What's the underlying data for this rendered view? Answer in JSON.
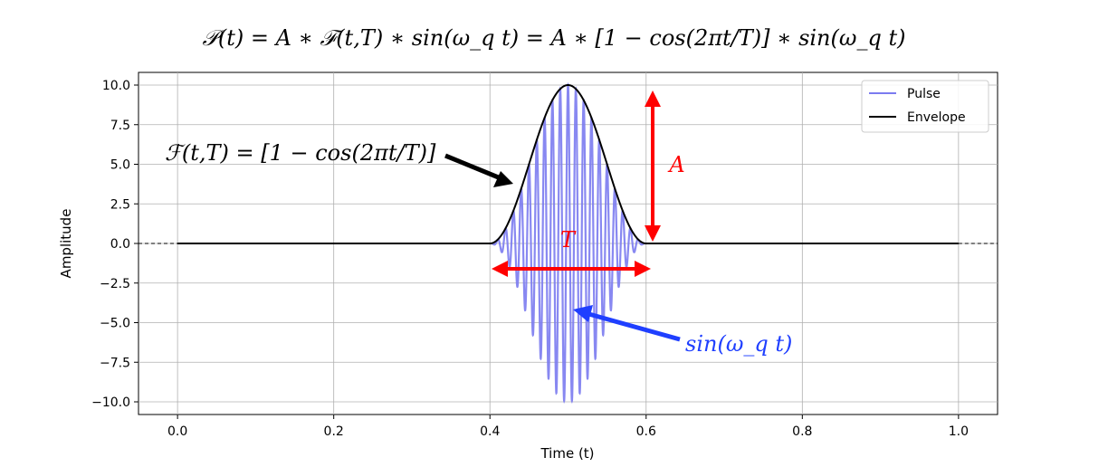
{
  "chart_data": {
    "type": "line",
    "title": "𝒫(t) = A ∗ ℱ(t,T) ∗ sin(ω_q t) = A ∗ [1 − cos(2πt/T)] ∗ sin(ω_q t)",
    "xlabel": "Time (t)",
    "ylabel": "Amplitude",
    "xlim": [
      -0.05,
      1.05
    ],
    "ylim": [
      -10.8,
      10.8
    ],
    "xticks": [
      0.0,
      0.2,
      0.4,
      0.6,
      0.8,
      1.0
    ],
    "xtick_labels": [
      "0.0",
      "0.2",
      "0.4",
      "0.6",
      "0.8",
      "1.0"
    ],
    "yticks": [
      10.0,
      7.5,
      5.0,
      2.5,
      0.0,
      -2.5,
      -5.0,
      -7.5,
      -10.0
    ],
    "ytick_labels": [
      "10.0",
      "7.5",
      "5.0",
      "2.5",
      "0.0",
      "−2.5",
      "−5.0",
      "−7.5",
      "−10.0"
    ],
    "grid": true,
    "legend_position": "top-right",
    "series": [
      {
        "name": "Pulse",
        "color": "#7b7bf0",
        "description": "10*[1-cos(2π(t-0.4)/0.2)]/2 * sin(ω_q t) for 0.4≤t≤0.6",
        "amplitude": 10,
        "pulse_start": 0.4,
        "pulse_end": 0.6,
        "oscillations": 20
      },
      {
        "name": "Envelope",
        "color": "#000000",
        "amplitude": 10,
        "pulse_start": 0.4,
        "pulse_end": 0.6
      }
    ],
    "annotations": {
      "envelope_formula": "ℱ(t,T) = [1 − cos(2πt/T)]",
      "amplitude_label": "A",
      "period_label": "T",
      "carrier_label": "sin(ω_q t)",
      "amplitude_color": "#ff0000",
      "carrier_color": "#1f3fff"
    }
  }
}
